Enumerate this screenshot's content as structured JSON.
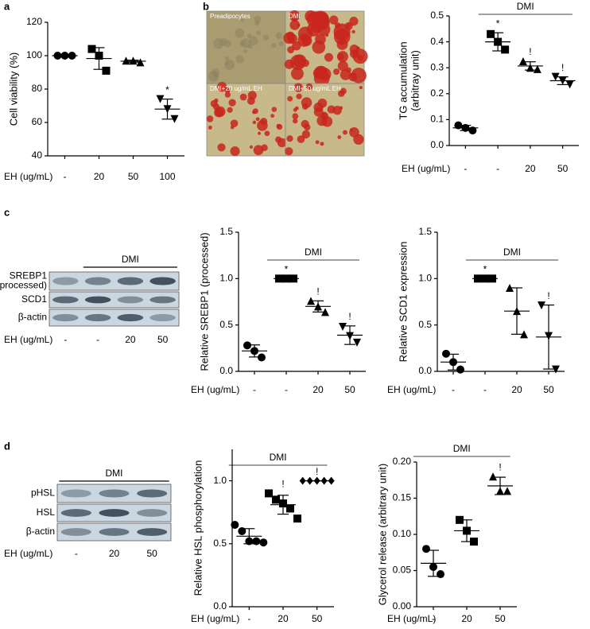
{
  "panel_labels": [
    "a",
    "b",
    "c",
    "d"
  ],
  "micrograph": {
    "labels": [
      "Preadipocytes",
      "DMI",
      "DMI+20 ug/mL EH",
      "DMI+50 ug/mL EH"
    ]
  },
  "blots": [
    {
      "bracket_label": "DMI",
      "in_bracket": [
        false,
        true,
        true,
        true
      ],
      "rows": [
        [
          "SREBP1",
          "(processed)"
        ],
        [
          "SCD1"
        ],
        [
          "β-actin"
        ]
      ],
      "x_label": "EH (ug/mL)",
      "lanes": [
        "-",
        "-",
        "20",
        "50"
      ]
    },
    {
      "bracket_label": "DMI",
      "in_bracket": [
        true,
        true,
        true
      ],
      "rows": [
        [
          "pHSL"
        ],
        [
          "HSL"
        ],
        [
          "β-actin"
        ]
      ],
      "x_label": "EH (ug/mL)",
      "lanes": [
        "-",
        "20",
        "50"
      ]
    }
  ],
  "chart_data": [
    {
      "type": "dotplot",
      "ylabel": [
        "Cell viability (%)"
      ],
      "x_label": "EH (ug/mL)",
      "categories": [
        "-",
        "20",
        "50",
        "100"
      ],
      "markers": [
        "circle",
        "square",
        "triangle",
        "triangle-down"
      ],
      "color": "#000000",
      "values": [
        [
          100,
          100,
          100
        ],
        [
          104,
          100,
          91
        ],
        [
          97,
          97,
          96
        ],
        [
          74,
          68,
          62
        ]
      ],
      "means": [
        100,
        98.3,
        96.7,
        68
      ],
      "sd": [
        0,
        6.5,
        0.6,
        6
      ],
      "annotations": [
        null,
        null,
        null,
        "*"
      ],
      "ylim": [
        40,
        120
      ],
      "yticks": [
        40,
        60,
        80,
        100,
        120
      ]
    },
    {
      "type": "dotplot",
      "ylabel": [
        "TG accumulation",
        "(arbitray unit)"
      ],
      "x_label": "EH (ug/mL)",
      "categories": [
        "-",
        "-",
        "20",
        "50"
      ],
      "markers": [
        "circle",
        "square",
        "triangle",
        "triangle-down"
      ],
      "color": "#000000",
      "values": [
        [
          0.078,
          0.068,
          0.058
        ],
        [
          0.43,
          0.4,
          0.37
        ],
        [
          0.325,
          0.3,
          0.295
        ],
        [
          0.265,
          0.25,
          0.235
        ]
      ],
      "means": [
        0.068,
        0.4,
        0.307,
        0.25
      ],
      "sd": [
        0.01,
        0.035,
        0.016,
        0.015
      ],
      "annotations": [
        null,
        "*",
        "!",
        "!"
      ],
      "bracket_label": "DMI",
      "in_bracket": [
        false,
        true,
        true,
        true
      ],
      "ylim": [
        0,
        0.5
      ],
      "yticks": [
        {
          "value": 0,
          "label": "0.0"
        },
        0.1,
        0.2,
        0.3,
        0.4,
        0.5
      ]
    },
    {
      "type": "dotplot",
      "ylabel": [
        "Relative SREBP1 (processed)"
      ],
      "x_label": "EH (ug/mL)",
      "categories": [
        "-",
        "-",
        "20",
        "50"
      ],
      "markers": [
        "circle",
        "square",
        "triangle",
        "triangle-down"
      ],
      "color": "#000000",
      "values": [
        [
          0.28,
          0.22,
          0.15
        ],
        [
          1,
          1,
          1
        ],
        [
          0.76,
          0.7,
          0.64
        ],
        [
          0.48,
          0.38,
          0.31
        ]
      ],
      "means": [
        0.22,
        1,
        0.7,
        0.39
      ],
      "sd": [
        0.065,
        0,
        0.06,
        0.1
      ],
      "annotations": [
        null,
        "*",
        "!",
        "!"
      ],
      "bracket_label": "DMI",
      "in_bracket": [
        false,
        true,
        true,
        true
      ],
      "ylim": [
        0,
        1.5
      ],
      "yticks": [
        {
          "value": 0,
          "label": "0.0"
        },
        0.5,
        {
          "value": 1,
          "label": "1.0"
        },
        1.5
      ]
    },
    {
      "type": "dotplot",
      "ylabel": [
        "Relative SCD1 expression"
      ],
      "x_label": "EH (ug/mL)",
      "categories": [
        "-",
        "-",
        "20",
        "50"
      ],
      "markers": [
        "circle",
        "square",
        "triangle",
        "triangle-down"
      ],
      "color": "#000000",
      "values": [
        [
          0.19,
          0.1,
          0.02
        ],
        [
          1,
          1,
          1
        ],
        [
          0.9,
          0.65,
          0.4
        ],
        [
          0.71,
          0.38,
          0.02
        ]
      ],
      "means": [
        0.1,
        1,
        0.65,
        0.37
      ],
      "sd": [
        0.085,
        0,
        0.25,
        0.345
      ],
      "annotations": [
        null,
        "*",
        null,
        "!"
      ],
      "bracket_label": "DMI",
      "in_bracket": [
        false,
        true,
        true,
        true
      ],
      "ylim": [
        0,
        1.5
      ],
      "yticks": [
        {
          "value": 0,
          "label": "0.0"
        },
        0.5,
        {
          "value": 1,
          "label": "1.0"
        },
        1.5
      ]
    },
    {
      "type": "dotplot",
      "ylabel": [
        "Relative HSL phosphorylation"
      ],
      "x_label": "EH (ug/mL)",
      "categories": [
        "-",
        "20",
        "50"
      ],
      "markers": [
        "circle",
        "square",
        "diamond"
      ],
      "color": "#000000",
      "values": [
        [
          0.65,
          0.6,
          0.52,
          0.52,
          0.51
        ],
        [
          0.9,
          0.85,
          0.82,
          0.78,
          0.7
        ],
        [
          1,
          1,
          1,
          1,
          1
        ]
      ],
      "means": [
        0.56,
        0.81,
        1
      ],
      "sd": [
        0.06,
        0.075,
        0
      ],
      "annotations": [
        null,
        "!",
        "!"
      ],
      "bracket_label": "DMI",
      "in_bracket": [
        true,
        true,
        true
      ],
      "ylim": [
        0,
        1.25
      ],
      "yticks": [
        {
          "value": 0,
          "label": "0.0"
        },
        0.5,
        {
          "value": 1,
          "label": "1.0"
        }
      ]
    },
    {
      "type": "dotplot",
      "ylabel": [
        "Glycerol release (arbitrary unit)"
      ],
      "x_label": "EH (ug/mL)",
      "categories": [
        "-",
        "20",
        "50"
      ],
      "markers": [
        "circle",
        "square",
        "triangle"
      ],
      "color": "#000000",
      "values": [
        [
          0.08,
          0.055,
          0.045
        ],
        [
          0.12,
          0.105,
          0.09
        ],
        [
          0.18,
          0.16,
          0.16
        ]
      ],
      "means": [
        0.06,
        0.105,
        0.167
      ],
      "sd": [
        0.018,
        0.015,
        0.012
      ],
      "annotations": [
        null,
        null,
        "!"
      ],
      "bracket_label": "DMI",
      "in_bracket": [
        true,
        true,
        true
      ],
      "ylim": [
        0,
        0.2
      ],
      "yticks": [
        {
          "value": 0,
          "label": "0.00"
        },
        0.05,
        {
          "value": 0.1,
          "label": "0.10"
        },
        0.15,
        {
          "value": 0.2,
          "label": "0.20"
        }
      ]
    }
  ]
}
